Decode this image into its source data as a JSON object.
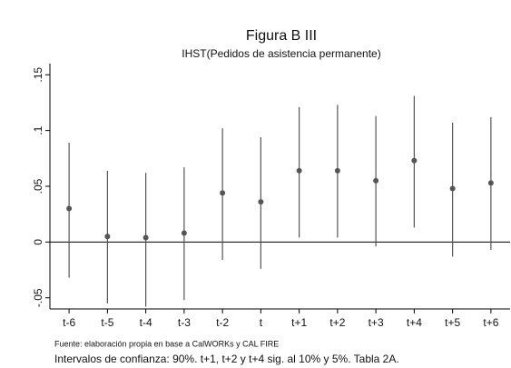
{
  "chart_data": {
    "type": "errorbar",
    "title": "Figura B III",
    "subtitle": "IHST(Pedidos de asistencia permanente)",
    "notes": [
      "Fuente: elaboración propia en base a CalWORKs y CAL FIRE",
      "Intervalos de confianza: 90%. t+1, t+2 y t+4 sig. al 10% y 5%. Tabla 2A."
    ],
    "categories": [
      "t-6",
      "t-5",
      "t-4",
      "t-3",
      "t-2",
      "t",
      "t+1",
      "t+2",
      "t+3",
      "t+4",
      "t+5",
      "t+6"
    ],
    "values": [
      0.03,
      0.005,
      0.004,
      0.008,
      0.044,
      0.036,
      0.064,
      0.064,
      0.055,
      0.073,
      0.048,
      0.053
    ],
    "lower": [
      -0.032,
      -0.055,
      -0.058,
      -0.052,
      -0.016,
      -0.024,
      0.004,
      0.004,
      -0.004,
      0.013,
      -0.013,
      -0.007
    ],
    "upper": [
      0.089,
      0.064,
      0.062,
      0.067,
      0.102,
      0.094,
      0.121,
      0.123,
      0.113,
      0.131,
      0.107,
      0.112
    ],
    "color": "#555555",
    "ylim": [
      -0.06,
      0.16
    ],
    "yticks": [
      {
        "value": -0.05,
        "label": "-.05"
      },
      0,
      {
        "value": 0.05,
        "label": ".05"
      },
      {
        "value": 0.1,
        "label": ".1"
      },
      {
        "value": 0.15,
        "label": ".15"
      }
    ]
  }
}
